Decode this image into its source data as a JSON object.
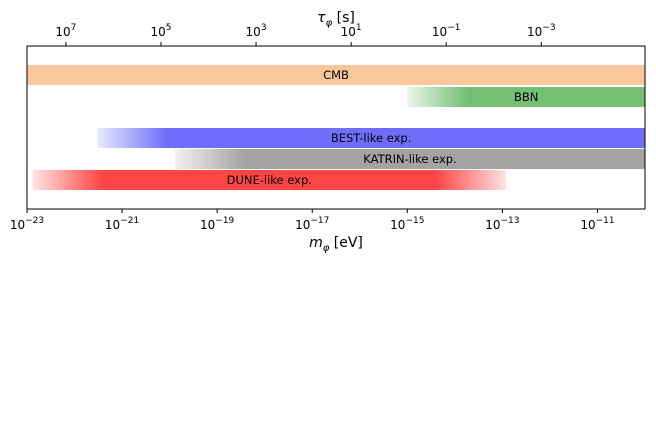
{
  "chart_data": {
    "type": "bar",
    "xlabel": "m_φ [eV]",
    "x2label": "τ_φ [s]",
    "xscale": "log",
    "xlim": [
      1e-23,
      1e-10
    ],
    "x_ticks": [
      {
        "value": 1e-23,
        "base": "10",
        "exp": "−23"
      },
      {
        "value": 1e-21,
        "base": "10",
        "exp": "−21"
      },
      {
        "value": 1e-19,
        "base": "10",
        "exp": "−19"
      },
      {
        "value": 1e-17,
        "base": "10",
        "exp": "−17"
      },
      {
        "value": 1e-15,
        "base": "10",
        "exp": "−15"
      },
      {
        "value": 1e-13,
        "base": "10",
        "exp": "−13"
      },
      {
        "value": 1e-11,
        "base": "10",
        "exp": "−11"
      }
    ],
    "top_ticks": [
      {
        "value": 10000000.0,
        "base": "10",
        "exp": "7"
      },
      {
        "value": 100000.0,
        "base": "10",
        "exp": "5"
      },
      {
        "value": 1000.0,
        "base": "10",
        "exp": "3"
      },
      {
        "value": 10.0,
        "base": "10",
        "exp": "1"
      },
      {
        "value": 0.1,
        "base": "10",
        "exp": "−1"
      },
      {
        "value": 0.001,
        "base": "10",
        "exp": "−3"
      }
    ],
    "series": [
      {
        "name": "CMB",
        "x_start": 1e-23,
        "x_end": 1e-10,
        "color": "#fcc89b",
        "fade_left": false,
        "fade_right": false
      },
      {
        "name": "BBN",
        "x_start": 1e-15,
        "x_end": 1e-10,
        "color": "#75bf75",
        "fade_left": true,
        "fade_right": false
      },
      {
        "name": "BEST-like exp.",
        "x_start": 3e-22,
        "x_end": 1e-10,
        "color": "#6e6efa",
        "fade_left": true,
        "fade_right": false
      },
      {
        "name": "KATRIN-like exp.",
        "x_start": 1.3e-20,
        "x_end": 1e-10,
        "color": "#a3a3a3",
        "fade_left": true,
        "fade_right": false
      },
      {
        "name": "DUNE-like exp.",
        "x_start": 1.3e-23,
        "x_end": 1.2e-13,
        "color": "#ff4545",
        "fade_left": true,
        "fade_right": true
      }
    ],
    "grid": false,
    "legend": "none"
  }
}
